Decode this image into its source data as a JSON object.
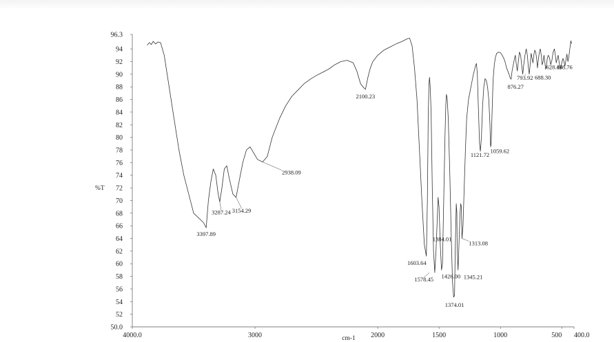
{
  "chart_data": {
    "type": "line",
    "title": "",
    "xlabel": "cm-1",
    "ylabel": "%T",
    "xlim": [
      4000.0,
      400.0
    ],
    "ylim": [
      50.0,
      96.3
    ],
    "x_reversed": true,
    "grid": false,
    "x_tick_labels": [
      "4000.0",
      "3000",
      "2000",
      "1500",
      "1000",
      "500",
      "400.0"
    ],
    "x_ticks": [
      4000,
      3000,
      2000,
      1500,
      1000,
      500,
      400
    ],
    "y_tick_labels": [
      "96.3",
      "94",
      "92",
      "90",
      "88",
      "86",
      "84",
      "82",
      "80",
      "78",
      "76",
      "74",
      "72",
      "70",
      "68",
      "66",
      "64",
      "62",
      "60",
      "58",
      "56",
      "54",
      "52",
      "50.0"
    ],
    "y_ticks": [
      96.3,
      94,
      92,
      90,
      88,
      86,
      84,
      82,
      80,
      78,
      76,
      74,
      72,
      70,
      68,
      66,
      64,
      62,
      60,
      58,
      56,
      54,
      52,
      50
    ],
    "series": [
      {
        "values": [
          [
            3880,
            94.6
          ],
          [
            3860,
            95.0
          ],
          [
            3845,
            94.7
          ],
          [
            3830,
            95.2
          ],
          [
            3810,
            94.8
          ],
          [
            3790,
            95.1
          ],
          [
            3770,
            95.0
          ],
          [
            3740,
            93.0
          ],
          [
            3700,
            88.0
          ],
          [
            3660,
            83.0
          ],
          [
            3620,
            78.0
          ],
          [
            3580,
            74.0
          ],
          [
            3540,
            71.0
          ],
          [
            3500,
            68.0
          ],
          [
            3420,
            66.5
          ],
          [
            3397.89,
            65.7
          ],
          [
            3380,
            70.0
          ],
          [
            3360,
            73.0
          ],
          [
            3340,
            75.0
          ],
          [
            3320,
            74.0
          ],
          [
            3300,
            71.0
          ],
          [
            3287.24,
            69.8
          ],
          [
            3270,
            72.0
          ],
          [
            3250,
            75.0
          ],
          [
            3230,
            75.5
          ],
          [
            3210,
            73.5
          ],
          [
            3180,
            71.0
          ],
          [
            3154.29,
            70.5
          ],
          [
            3130,
            73.0
          ],
          [
            3100,
            76.0
          ],
          [
            3070,
            78.0
          ],
          [
            3040,
            78.5
          ],
          [
            3010,
            77.5
          ],
          [
            2980,
            76.5
          ],
          [
            2938.09,
            76.1
          ],
          [
            2900,
            77.0
          ],
          [
            2860,
            80.0
          ],
          [
            2800,
            83.0
          ],
          [
            2750,
            85.0
          ],
          [
            2700,
            86.5
          ],
          [
            2650,
            87.5
          ],
          [
            2600,
            88.5
          ],
          [
            2550,
            89.2
          ],
          [
            2500,
            89.8
          ],
          [
            2450,
            90.3
          ],
          [
            2400,
            90.8
          ],
          [
            2350,
            91.5
          ],
          [
            2300,
            92.0
          ],
          [
            2250,
            92.2
          ],
          [
            2200,
            91.8
          ],
          [
            2170,
            90.5
          ],
          [
            2140,
            88.5
          ],
          [
            2120,
            88.0
          ],
          [
            2100.23,
            87.6
          ],
          [
            2080,
            89.5
          ],
          [
            2060,
            91.0
          ],
          [
            2040,
            92.0
          ],
          [
            2000,
            93.0
          ],
          [
            1950,
            93.8
          ],
          [
            1900,
            94.3
          ],
          [
            1850,
            94.8
          ],
          [
            1800,
            95.2
          ],
          [
            1760,
            95.6
          ],
          [
            1740,
            95.7
          ],
          [
            1720,
            94.5
          ],
          [
            1700,
            91.0
          ],
          [
            1680,
            86.0
          ],
          [
            1660,
            78.0
          ],
          [
            1640,
            70.0
          ],
          [
            1620,
            63.0
          ],
          [
            1603.64,
            61.2
          ],
          [
            1595,
            70.0
          ],
          [
            1588,
            84.0
          ],
          [
            1582,
            88.5
          ],
          [
            1578,
            89.5
          ],
          [
            1572,
            88.0
          ],
          [
            1565,
            84.0
          ],
          [
            1555,
            72.0
          ],
          [
            1545,
            62.0
          ],
          [
            1535,
            58.6
          ],
          [
            1525,
            62.0
          ],
          [
            1515,
            67.0
          ],
          [
            1508,
            70.5
          ],
          [
            1500,
            69.0
          ],
          [
            1490,
            63.0
          ],
          [
            1480,
            59.0
          ],
          [
            1472,
            60.0
          ],
          [
            1462,
            70.0
          ],
          [
            1452,
            80.0
          ],
          [
            1445,
            85.0
          ],
          [
            1440,
            86.8
          ],
          [
            1434,
            86.2
          ],
          [
            1425,
            83.0
          ],
          [
            1412,
            74.0
          ],
          [
            1400,
            64.0
          ],
          [
            1390,
            57.0
          ],
          [
            1381,
            54.7
          ],
          [
            1374.01,
            55.0
          ],
          [
            1368,
            62.0
          ],
          [
            1360,
            69.5
          ],
          [
            1355,
            68.0
          ],
          [
            1352,
            62.0
          ],
          [
            1345.21,
            59.0
          ],
          [
            1338,
            63.0
          ],
          [
            1330,
            67.5
          ],
          [
            1324,
            69.5
          ],
          [
            1318,
            69.0
          ],
          [
            1313.08,
            64.0
          ],
          [
            1305,
            66.0
          ],
          [
            1295,
            72.0
          ],
          [
            1285,
            78.0
          ],
          [
            1275,
            83.0
          ],
          [
            1260,
            86.0
          ],
          [
            1240,
            88.0
          ],
          [
            1220,
            90.0
          ],
          [
            1205,
            91.2
          ],
          [
            1195,
            91.7
          ],
          [
            1188,
            90.0
          ],
          [
            1180,
            85.0
          ],
          [
            1170,
            79.0
          ],
          [
            1163,
            77.8
          ],
          [
            1155,
            80.0
          ],
          [
            1145,
            85.0
          ],
          [
            1135,
            88.0
          ],
          [
            1125,
            89.3
          ],
          [
            1115,
            89.0
          ],
          [
            1105,
            88.0
          ],
          [
            1095,
            86.0
          ],
          [
            1085,
            82.0
          ],
          [
            1080,
            78.5
          ],
          [
            1075,
            79.0
          ],
          [
            1068,
            84.0
          ],
          [
            1060,
            89.0
          ],
          [
            1050,
            91.5
          ],
          [
            1040,
            92.7
          ],
          [
            1030,
            93.3
          ],
          [
            1015,
            93.5
          ],
          [
            1000,
            93.4
          ],
          [
            985,
            93.0
          ],
          [
            970,
            92.4
          ],
          [
            960,
            91.8
          ],
          [
            950,
            91.0
          ],
          [
            940,
            90.5
          ],
          [
            930,
            90.0
          ],
          [
            920,
            89.4
          ],
          [
            913,
            89.2
          ],
          [
            905,
            90.5
          ],
          [
            895,
            91.5
          ],
          [
            885,
            92.5
          ],
          [
            878,
            93.0
          ],
          [
            870,
            91.5
          ],
          [
            862,
            90.5
          ],
          [
            855,
            91.8
          ],
          [
            845,
            93.5
          ],
          [
            835,
            93.0
          ],
          [
            825,
            91.2
          ],
          [
            818,
            90.0
          ],
          [
            810,
            91.5
          ],
          [
            800,
            93.0
          ],
          [
            790,
            94.0
          ],
          [
            780,
            93.0
          ],
          [
            772,
            91.0
          ],
          [
            765,
            90.0
          ],
          [
            758,
            91.5
          ],
          [
            750,
            93.3
          ],
          [
            742,
            92.5
          ],
          [
            735,
            91.8
          ],
          [
            728,
            93.0
          ],
          [
            720,
            93.8
          ],
          [
            712,
            93.5
          ],
          [
            705,
            92.5
          ],
          [
            698,
            91.0
          ],
          [
            690,
            92.5
          ],
          [
            682,
            93.5
          ],
          [
            675,
            94.0
          ],
          [
            667,
            93.0
          ],
          [
            660,
            91.5
          ],
          [
            652,
            92.0
          ],
          [
            645,
            93.0
          ],
          [
            638,
            92.0
          ],
          [
            632,
            90.8
          ],
          [
            625,
            91.3
          ],
          [
            618,
            92.5
          ],
          [
            610,
            93.0
          ],
          [
            600,
            92.6
          ],
          [
            590,
            91.5
          ],
          [
            580,
            92.2
          ],
          [
            570,
            93.5
          ],
          [
            560,
            94.0
          ],
          [
            552,
            93.0
          ],
          [
            545,
            91.8
          ],
          [
            538,
            92.3
          ],
          [
            530,
            93.0
          ],
          [
            522,
            92.0
          ],
          [
            514,
            90.8
          ],
          [
            505,
            91.3
          ],
          [
            498,
            92.0
          ],
          [
            490,
            92.5
          ],
          [
            482,
            92.0
          ],
          [
            474,
            91.3
          ],
          [
            466,
            92.2
          ],
          [
            458,
            93.2
          ],
          [
            450,
            92.0
          ],
          [
            442,
            92.8
          ],
          [
            434,
            94.0
          ],
          [
            426,
            95.3
          ],
          [
            420,
            94.8
          ]
        ]
      }
    ],
    "annotations": [
      {
        "text": "3397.89",
        "x": 3397.89,
        "y": 65.7
      },
      {
        "text": "3287.24",
        "x": 3287.24,
        "y": 69.8
      },
      {
        "text": "3154.29",
        "x": 3154.29,
        "y": 70.5
      },
      {
        "text": "2938.09",
        "x": 2938.09,
        "y": 76.1
      },
      {
        "text": "2100.23",
        "x": 2100.23,
        "y": 87.6
      },
      {
        "text": "1384.01",
        "x": 1384.01,
        "y": 64.0
      },
      {
        "text": "1603.64",
        "x": 1603.64,
        "y": 61.2
      },
      {
        "text": "1578.45",
        "x": 1578.45,
        "y": 58.6
      },
      {
        "text": "1426.00",
        "x": 1426.0,
        "y": 59.0
      },
      {
        "text": "1374.01",
        "x": 1374.01,
        "y": 54.7
      },
      {
        "text": "1345.21",
        "x": 1345.21,
        "y": 59.0
      },
      {
        "text": "1313.08",
        "x": 1313.08,
        "y": 64.0
      },
      {
        "text": "1121.72",
        "x": 1121.72,
        "y": 77.8
      },
      {
        "text": "1059.62",
        "x": 1059.62,
        "y": 78.5
      },
      {
        "text": "876.27",
        "x": 876.27,
        "y": 89.2
      },
      {
        "text": "793.92",
        "x": 793.92,
        "y": 90.0
      },
      {
        "text": "688.30",
        "x": 688.3,
        "y": 91.0
      },
      {
        "text": "628.16",
        "x": 628.16,
        "y": 90.8
      },
      {
        "text": "498.76",
        "x": 498.76,
        "y": 90.8
      }
    ]
  }
}
